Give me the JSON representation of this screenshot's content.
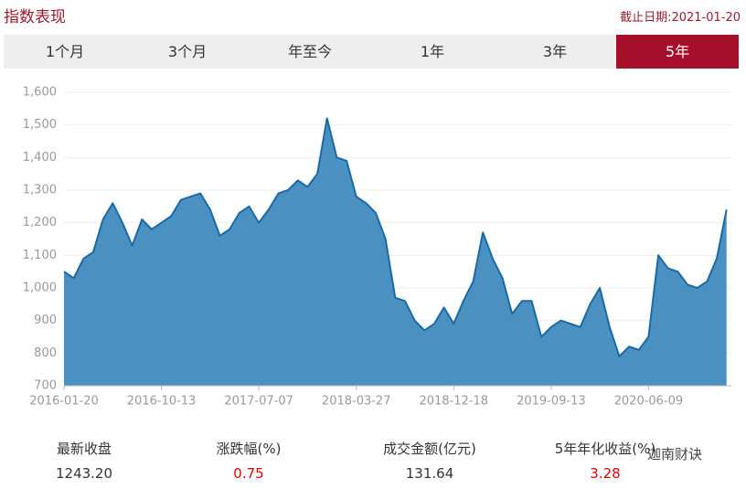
{
  "header": {
    "title": "指数表现",
    "date": "截止日期:2021-01-20"
  },
  "tabs": {
    "items": [
      "1个月",
      "3个月",
      "年至今",
      "1年",
      "3年",
      "5年"
    ],
    "active": 5
  },
  "chart_data": {
    "type": "area",
    "categories": [
      "2016-01-20",
      null,
      null,
      null,
      null,
      null,
      null,
      null,
      null,
      null,
      "2016-10-13",
      null,
      null,
      null,
      null,
      null,
      null,
      null,
      null,
      null,
      "2017-07-07",
      null,
      null,
      null,
      null,
      null,
      null,
      null,
      null,
      null,
      "2018-03-27",
      null,
      null,
      null,
      null,
      null,
      null,
      null,
      null,
      null,
      "2018-12-18",
      null,
      null,
      null,
      null,
      null,
      null,
      null,
      null,
      null,
      "2019-09-13",
      null,
      null,
      null,
      null,
      null,
      null,
      null,
      null,
      null,
      "2020-06-09",
      null,
      null,
      null,
      null,
      null,
      null,
      null,
      null
    ],
    "values": [
      1050,
      1030,
      1090,
      1110,
      1210,
      1260,
      1200,
      1130,
      1210,
      1180,
      1200,
      1220,
      1270,
      1280,
      1290,
      1240,
      1160,
      1180,
      1230,
      1250,
      1200,
      1240,
      1290,
      1300,
      1330,
      1310,
      1350,
      1520,
      1400,
      1390,
      1280,
      1260,
      1230,
      1150,
      970,
      960,
      900,
      870,
      890,
      940,
      890,
      960,
      1020,
      1170,
      1090,
      1030,
      920,
      960,
      960,
      850,
      880,
      900,
      890,
      880,
      950,
      1000,
      880,
      790,
      820,
      810,
      850,
      1100,
      1060,
      1050,
      1010,
      1000,
      1020,
      1090,
      1240
    ],
    "color": "#4a90c0",
    "line_color": "#1a6aa5",
    "ylim": [
      700,
      1600
    ],
    "yticks": [
      700,
      800,
      900,
      {
        "value": 1000,
        "label": "1,000"
      },
      {
        "value": 1100,
        "label": "1,100"
      },
      {
        "value": 1200,
        "label": "1,200"
      },
      {
        "value": 1300,
        "label": "1,300"
      },
      {
        "value": 1400,
        "label": "1,400"
      },
      {
        "value": 1500,
        "label": "1,500"
      },
      {
        "value": 1600,
        "label": "1,600"
      }
    ],
    "grid": true
  },
  "stats": [
    {
      "label": "最新收盘",
      "value": "1243.20"
    },
    {
      "label": "涨跌幅(%)",
      "value": "0.75",
      "highlight": true
    },
    {
      "label": "成交金额(亿元)",
      "value": "131.64"
    },
    {
      "label": "5年年化收益(%)",
      "value": "3.28",
      "highlight": true
    }
  ],
  "watermark": "迦南财诀"
}
